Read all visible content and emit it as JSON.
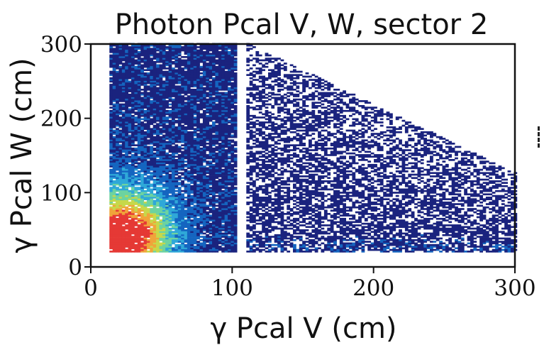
{
  "chart_data": {
    "type": "heatmap",
    "title": "Photon Pcal V, W, sector 2",
    "xlabel": "γ Pcal V (cm)",
    "ylabel": "γ Pcal W (cm)",
    "xlim": [
      0,
      300
    ],
    "ylim": [
      0,
      300
    ],
    "xticks": [
      "0",
      "100",
      "200",
      "300"
    ],
    "yticks": [
      "0",
      "100",
      "200",
      "300"
    ],
    "grid": false,
    "colormap": "jet",
    "colors": [
      "#1a237e",
      "#1565c0",
      "#2fa8d8",
      "#6dd3a0",
      "#c7d84a",
      "#f0a43a",
      "#e53935"
    ],
    "regions": [
      {
        "v_range": [
          13,
          102
        ],
        "w_range": [
          18,
          300
        ],
        "peak": [
          23,
          38
        ],
        "density": "high"
      },
      {
        "v_range": [
          110,
          300
        ],
        "w_min": 18,
        "w_max_at_v_start": 300,
        "w_max_at_v_end": 125,
        "density": "low"
      }
    ],
    "gap_v": [
      102,
      110
    ]
  }
}
